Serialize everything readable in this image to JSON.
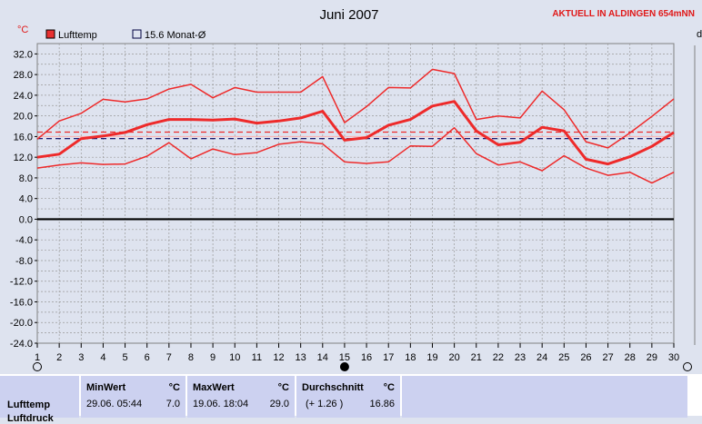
{
  "station_text": "AKTUELL IN ALDINGEN 654mNN",
  "right_edge_label": "d",
  "chart_data": {
    "type": "line",
    "title": "Juni 2007",
    "ylabel": "°C",
    "ylim": [
      -24,
      34
    ],
    "yticks": [
      "32.0",
      "28.0",
      "24.0",
      "20.0",
      "16.0",
      "12.0",
      "8.0",
      "4.0",
      "0.0",
      "-4.0",
      "-8.0",
      "-12.0",
      "-16.0",
      "-20.0",
      "-24.0"
    ],
    "ytick_values": [
      32,
      28,
      24,
      20,
      16,
      12,
      8,
      4,
      0,
      -4,
      -8,
      -12,
      -16,
      -20,
      -24
    ],
    "x": [
      1,
      2,
      3,
      4,
      5,
      6,
      7,
      8,
      9,
      10,
      11,
      12,
      13,
      14,
      15,
      16,
      17,
      18,
      19,
      20,
      21,
      22,
      23,
      24,
      25,
      26,
      27,
      28,
      29,
      30
    ],
    "xticks": [
      "1",
      "2",
      "3",
      "4",
      "5",
      "6",
      "7",
      "8",
      "9",
      "10",
      "11",
      "12",
      "13",
      "14",
      "15",
      "16",
      "17",
      "18",
      "19",
      "20",
      "21",
      "22",
      "23",
      "24",
      "25",
      "26",
      "27",
      "28",
      "29",
      "30"
    ],
    "grid": true,
    "legend": [
      {
        "label": "Lufttemp",
        "color": "#e83030",
        "filled": true
      },
      {
        "label": "15.6 Monat-Ø",
        "color": "#000040",
        "filled": false
      }
    ],
    "series": [
      {
        "name": "Max",
        "color": "#ee2a2a",
        "width": 1.5,
        "values": [
          15.5,
          19.0,
          20.5,
          23.2,
          22.7,
          23.3,
          25.2,
          26.1,
          23.5,
          25.5,
          24.6,
          24.6,
          24.6,
          27.6,
          18.7,
          21.8,
          25.5,
          25.4,
          29.0,
          28.2,
          19.3,
          20.0,
          19.6,
          24.8,
          21.2,
          15.0,
          13.8,
          16.7,
          19.9,
          23.3
        ]
      },
      {
        "name": "Mittel",
        "color": "#ee2a2a",
        "width": 3,
        "values": [
          12.0,
          12.6,
          15.6,
          16.1,
          16.8,
          18.3,
          19.3,
          19.3,
          19.2,
          19.4,
          18.6,
          19.0,
          19.6,
          20.9,
          15.3,
          15.8,
          18.2,
          19.3,
          21.9,
          22.8,
          17.1,
          14.4,
          14.9,
          17.8,
          17.1,
          11.6,
          10.7,
          12.1,
          14.1,
          16.8
        ]
      },
      {
        "name": "Min",
        "color": "#ee2a2a",
        "width": 1.5,
        "values": [
          9.9,
          10.5,
          10.9,
          10.6,
          10.7,
          12.2,
          14.8,
          11.7,
          13.6,
          12.5,
          12.9,
          14.5,
          15.0,
          14.6,
          11.1,
          10.8,
          11.1,
          14.2,
          14.1,
          17.7,
          12.7,
          10.5,
          11.1,
          9.4,
          12.3,
          9.9,
          8.5,
          9.1,
          7.0,
          9.1
        ]
      }
    ],
    "reference_lines": [
      {
        "value": 15.6,
        "color": "#000060",
        "style": "dashed"
      },
      {
        "value": 16.86,
        "color": "#ee2a2a",
        "style": "dashed"
      },
      {
        "value": 16.0,
        "color": "#ffb0b0",
        "style": "solid"
      },
      {
        "value": 0,
        "color": "#000000",
        "style": "bold"
      }
    ]
  },
  "stats": {
    "row_label": "Lufttemp",
    "row_label_2": "Luftdruck",
    "min_header": "MinWert",
    "min_unit": "°C",
    "min_time": "29.06.  05:44",
    "min_value": "7.0",
    "max_header": "MaxWert",
    "max_unit": "°C",
    "max_time": "19.06.  18:04",
    "max_value": "29.0",
    "avg_header": "Durchschnitt",
    "avg_unit": "°C",
    "avg_delta": "(+ 1.26 )",
    "avg_value": "16.86"
  },
  "colors": {
    "background": "#dee3ef",
    "plot_background": "#dee3ef",
    "series": "#ee2a2a",
    "stats_panel": "#ccd1f0"
  }
}
